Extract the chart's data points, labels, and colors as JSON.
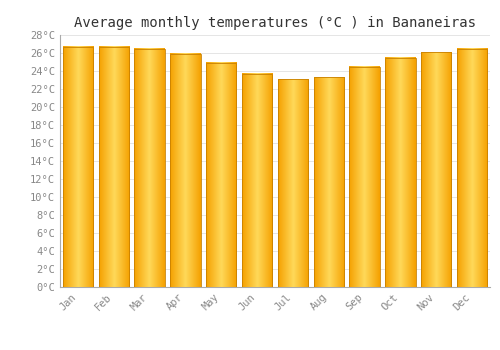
{
  "title": "Average monthly temperatures (°C ) in Bananeiras",
  "months": [
    "Jan",
    "Feb",
    "Mar",
    "Apr",
    "May",
    "Jun",
    "Jul",
    "Aug",
    "Sep",
    "Oct",
    "Nov",
    "Dec"
  ],
  "temperatures": [
    26.7,
    26.7,
    26.5,
    25.9,
    24.9,
    23.7,
    23.1,
    23.3,
    24.5,
    25.5,
    26.1,
    26.5
  ],
  "bar_color_center": "#FFD060",
  "bar_color_edge": "#F5A000",
  "bar_edge_color": "#C88000",
  "ylim": [
    0,
    28
  ],
  "yticks": [
    0,
    2,
    4,
    6,
    8,
    10,
    12,
    14,
    16,
    18,
    20,
    22,
    24,
    26,
    28
  ],
  "ytick_labels": [
    "0°C",
    "2°C",
    "4°C",
    "6°C",
    "8°C",
    "10°C",
    "12°C",
    "14°C",
    "16°C",
    "18°C",
    "20°C",
    "22°C",
    "24°C",
    "26°C",
    "28°C"
  ],
  "grid_color": "#e0e0e0",
  "background_color": "#ffffff",
  "title_fontsize": 10,
  "tick_fontsize": 7.5,
  "tick_color": "#888888",
  "axis_color": "#aaaaaa",
  "bar_width": 0.85
}
